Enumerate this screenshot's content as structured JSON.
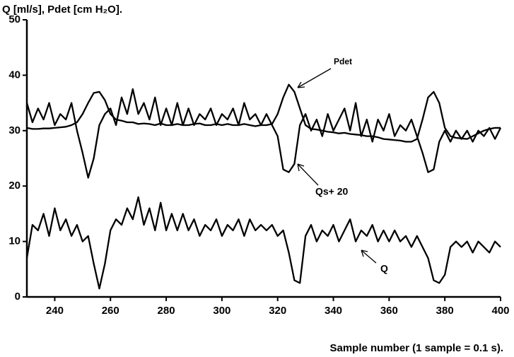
{
  "chart_data": {
    "type": "line",
    "y_axis_label": "Q [ml/s], Pdet [cm H₂O].",
    "x_axis_label": "Sample number (1 sample = 0.1 s).",
    "annotations": [
      "Pdet",
      "Qs+ 20",
      "Q"
    ],
    "x": [
      230,
      232,
      234,
      236,
      238,
      240,
      242,
      244,
      246,
      248,
      250,
      252,
      254,
      256,
      258,
      260,
      262,
      264,
      266,
      268,
      270,
      272,
      274,
      276,
      278,
      280,
      282,
      284,
      286,
      288,
      290,
      292,
      294,
      296,
      298,
      300,
      302,
      304,
      306,
      308,
      310,
      312,
      314,
      316,
      318,
      320,
      322,
      324,
      326,
      328,
      330,
      332,
      334,
      336,
      338,
      340,
      342,
      344,
      346,
      348,
      350,
      352,
      354,
      356,
      358,
      360,
      362,
      364,
      366,
      368,
      370,
      372,
      374,
      376,
      378,
      380,
      382,
      384,
      386,
      388,
      390,
      392,
      394,
      396,
      398,
      400
    ],
    "series": [
      {
        "name": "Pdet",
        "color": "#000000",
        "values": [
          30.5,
          30.3,
          30.3,
          30.4,
          30.4,
          30.5,
          30.6,
          30.7,
          31,
          31.5,
          33,
          35,
          36.8,
          37,
          35.5,
          33,
          32,
          31.8,
          31.5,
          31.5,
          31.2,
          31.3,
          31.2,
          31,
          31.3,
          31,
          31,
          31.2,
          31,
          31,
          31.2,
          31.3,
          31,
          31,
          31.2,
          31,
          31.2,
          31,
          31,
          31.2,
          31,
          30.8,
          31,
          31,
          31.2,
          33,
          36,
          38.3,
          37,
          34,
          31,
          30.3,
          30.2,
          30,
          29.8,
          29.7,
          29.5,
          29.6,
          29.4,
          29.3,
          29.2,
          29,
          29,
          28.8,
          28.5,
          28.4,
          28.3,
          28.2,
          28,
          28,
          28.5,
          32,
          36,
          37,
          35,
          30.5,
          29,
          28.7,
          28.6,
          28.5,
          29,
          29.5,
          30,
          30.3,
          30.5,
          30.5
        ]
      },
      {
        "name": "Qs+ 20",
        "color": "#000000",
        "values": [
          35,
          31.5,
          34,
          32,
          35,
          31,
          33,
          32,
          35,
          30,
          26,
          21.5,
          25,
          31,
          33,
          34,
          31,
          36,
          33,
          37.5,
          33,
          35,
          32,
          36,
          31,
          34,
          31,
          35,
          31,
          34,
          31,
          33,
          32,
          34,
          31,
          33,
          32,
          34,
          31,
          35,
          32,
          33,
          31,
          33,
          31,
          29,
          23,
          22.5,
          24,
          31,
          33,
          30,
          32,
          29,
          33,
          30,
          32,
          34,
          30,
          35,
          29,
          32,
          28,
          32,
          30,
          33,
          29,
          31,
          30,
          32,
          29,
          26,
          22.5,
          23,
          28,
          30,
          28,
          30,
          28.5,
          30,
          28,
          30,
          29,
          30.5,
          28.5,
          30.5
        ]
      },
      {
        "name": "Q",
        "color": "#000000",
        "values": [
          7,
          13,
          12,
          15,
          11,
          16,
          12,
          14,
          11,
          13,
          10,
          11,
          6,
          1.5,
          6,
          12,
          14,
          13,
          16,
          14,
          18,
          13,
          16,
          12,
          17,
          12,
          15,
          12,
          15,
          12,
          14,
          11,
          13,
          12,
          14,
          11,
          13,
          12,
          14,
          11,
          14,
          12,
          13,
          12,
          13,
          11,
          12,
          8,
          3,
          2.5,
          11,
          13,
          10,
          12,
          11,
          13,
          10,
          12,
          14,
          10,
          12,
          11,
          13,
          10,
          12,
          10,
          12,
          10,
          11,
          9,
          11,
          9,
          7,
          3,
          2.5,
          4,
          9,
          10,
          9,
          10,
          8,
          10,
          9,
          8,
          10,
          9
        ]
      }
    ],
    "xlim": [
      230,
      400
    ],
    "xticks": [
      240,
      260,
      280,
      300,
      320,
      340,
      360,
      380,
      400
    ],
    "ylim": [
      0,
      50
    ],
    "yticks": [
      0,
      10,
      20,
      30,
      40,
      50
    ]
  }
}
